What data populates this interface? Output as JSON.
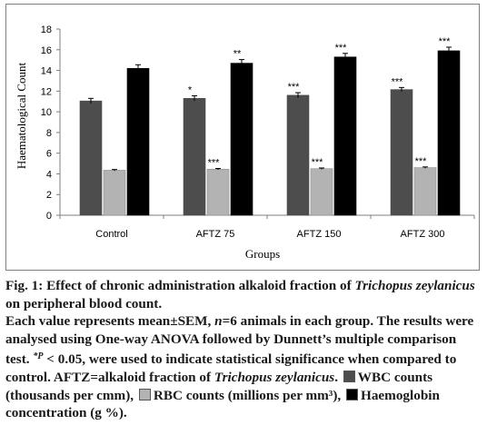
{
  "chart_data": {
    "type": "bar",
    "ylabel": "Haematological Count",
    "xlabel": "Groups",
    "ylim": [
      0,
      18
    ],
    "yticks": [
      "0",
      "2",
      "4",
      "6",
      "8",
      "10",
      "12",
      "14",
      "16",
      "18"
    ],
    "categories": [
      "Control",
      "AFTZ 75",
      "AFTZ 150",
      "AFTZ 300"
    ],
    "grid": false,
    "legend": "none",
    "series": [
      {
        "color": "#4d4d4d",
        "values": [
          11.05,
          11.3,
          11.6,
          12.15
        ],
        "errors": [
          0.25,
          0.25,
          0.25,
          0.2
        ],
        "labels": [
          "",
          "*",
          "***",
          "***"
        ]
      },
      {
        "color": "#b3b3b3",
        "values": [
          4.35,
          4.45,
          4.5,
          4.6
        ],
        "errors": [
          0.07,
          0.07,
          0.07,
          0.07
        ],
        "labels": [
          "",
          "***",
          "***",
          "***"
        ]
      },
      {
        "color": "#000000",
        "values": [
          14.2,
          14.7,
          15.3,
          15.9
        ],
        "errors": [
          0.35,
          0.35,
          0.35,
          0.35
        ],
        "labels": [
          "",
          "**",
          "***",
          "***"
        ]
      }
    ]
  },
  "caption": {
    "fig_title_a": "Fig. 1: Effect of chronic administration alkaloid fraction of ",
    "fig_title_species": "Trichopus zeylanicus",
    "fig_title_b": " on peripheral blood count.",
    "note_a": "Each value represents mean±SEM, ",
    "note_n": "n",
    "note_b": "=6 animals in each group. The results were analysed using One-way ANOVA followed by Dunnett’s multiple comparison test. ",
    "note_sig": "*P",
    "note_c": " < 0.05, were used to indicate statistical significance when compared to control. AFTZ=alkaloid fraction of ",
    "note_species": "Trichopus zeylanicus",
    "note_d": ".",
    "legend_wbc": "WBC counts (thousands per cmm),",
    "legend_rbc": "RBC counts (millions per mm³),",
    "legend_hb": "Haemoglobin concentration (g %)."
  }
}
